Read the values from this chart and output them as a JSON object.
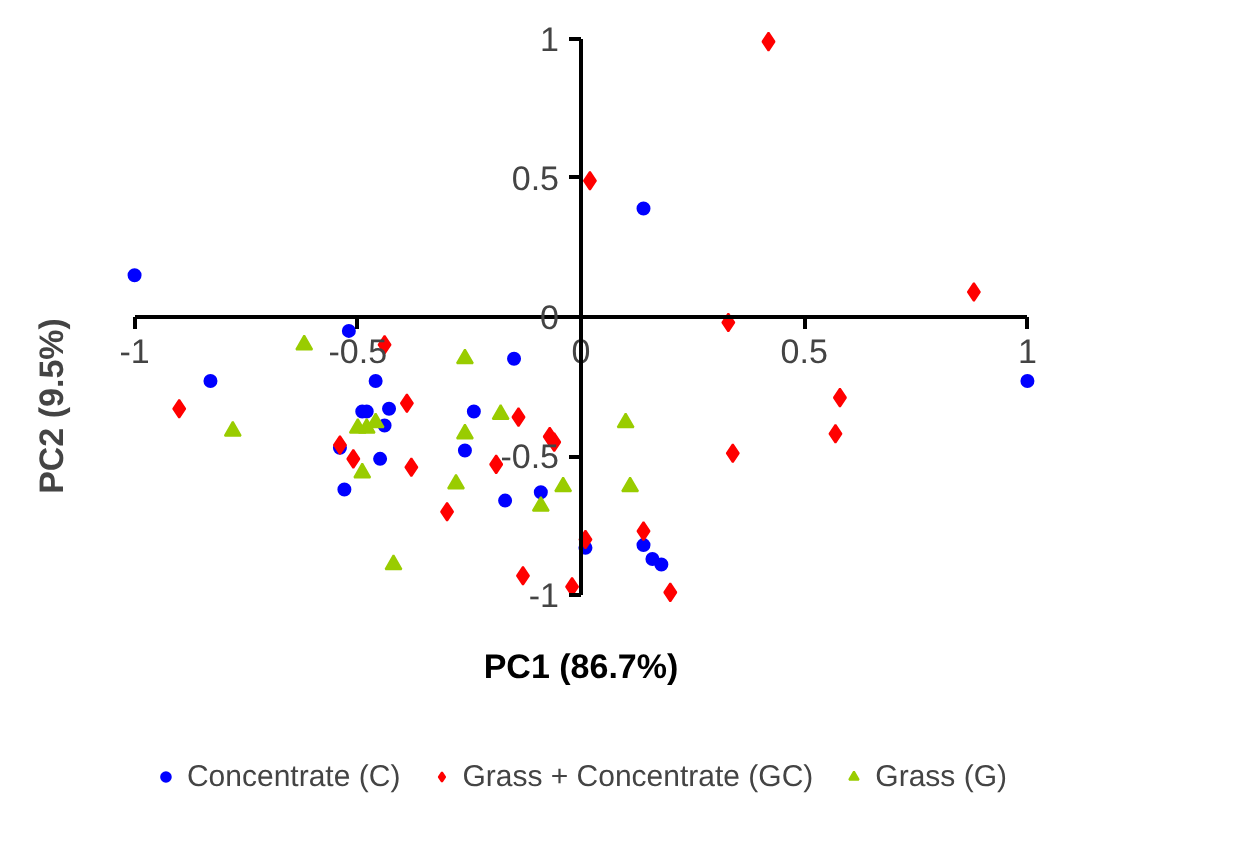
{
  "chart_data": {
    "type": "scatter",
    "xlabel": "PC1 (86.7%)",
    "ylabel": "PC2 (9.5%)",
    "xlim": [
      -1,
      1
    ],
    "ylim": [
      -1,
      1
    ],
    "xticks": [
      -1,
      -0.5,
      0,
      0.5,
      1
    ],
    "yticks": [
      -1,
      -0.5,
      0,
      0.5,
      1
    ],
    "grid": false,
    "legend": "bottom",
    "series": [
      {
        "name": "Concentrate (C)",
        "color": "#0000ff",
        "marker": "circle",
        "x": [
          -1.0,
          -0.52,
          -0.83,
          -0.46,
          -0.49,
          -0.48,
          -0.43,
          -0.44,
          -0.45,
          -0.53,
          -0.54,
          -0.15,
          -0.24,
          -0.26,
          -0.17,
          -0.09,
          0.01,
          0.14,
          0.16,
          0.18,
          0.14,
          1.0
        ],
        "values": [
          0.15,
          -0.05,
          -0.23,
          -0.23,
          -0.34,
          -0.34,
          -0.33,
          -0.39,
          -0.51,
          -0.62,
          -0.47,
          -0.15,
          -0.34,
          -0.48,
          -0.66,
          -0.63,
          -0.83,
          -0.82,
          -0.87,
          -0.89,
          0.39,
          -0.23
        ]
      },
      {
        "name": "Grass + Concentrate (GC)",
        "color": "#ff0000",
        "marker": "diamond",
        "x": [
          0.02,
          0.42,
          0.33,
          0.88,
          0.58,
          0.57,
          0.34,
          -0.14,
          -0.07,
          -0.06,
          -0.19,
          -0.3,
          0.14,
          0.01,
          -0.13,
          -0.02,
          0.2,
          -0.44,
          -0.9,
          -0.39,
          -0.54,
          -0.51,
          -0.38
        ],
        "values": [
          0.49,
          0.99,
          -0.02,
          0.09,
          -0.29,
          -0.42,
          -0.49,
          -0.36,
          -0.43,
          -0.45,
          -0.53,
          -0.7,
          -0.77,
          -0.8,
          -0.93,
          -0.97,
          -0.99,
          -0.1,
          -0.33,
          -0.31,
          -0.46,
          -0.51,
          -0.54
        ]
      },
      {
        "name": "Grass (G)",
        "color": "#99cc00",
        "marker": "triangle",
        "x": [
          -0.62,
          -0.78,
          -0.5,
          -0.48,
          -0.46,
          -0.49,
          -0.42,
          -0.26,
          -0.18,
          -0.26,
          -0.28,
          -0.04,
          -0.09,
          0.1,
          0.11
        ],
        "values": [
          -0.1,
          -0.41,
          -0.4,
          -0.4,
          -0.38,
          -0.56,
          -0.89,
          -0.15,
          -0.35,
          -0.42,
          -0.6,
          -0.61,
          -0.68,
          -0.38,
          -0.61
        ]
      }
    ]
  }
}
